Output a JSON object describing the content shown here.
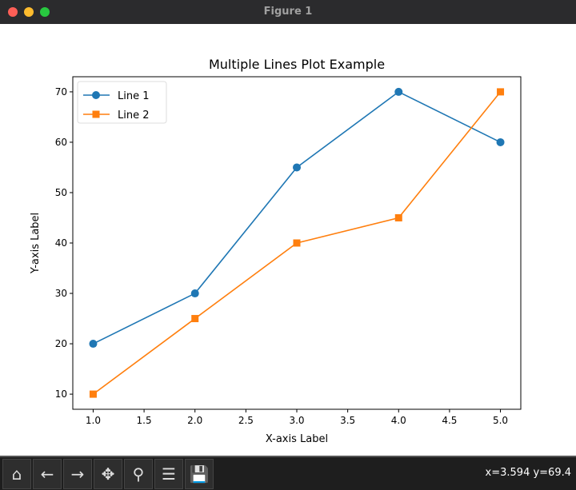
{
  "window": {
    "title": "Figure 1"
  },
  "toolbar": {
    "buttons": [
      {
        "icon": "home-icon",
        "glyph": "⌂"
      },
      {
        "icon": "back-arrow-icon",
        "glyph": "←"
      },
      {
        "icon": "forward-arrow-icon",
        "glyph": "→"
      },
      {
        "icon": "pan-icon",
        "glyph": "✥"
      },
      {
        "icon": "zoom-icon",
        "glyph": "⚲"
      },
      {
        "icon": "configure-subplots-icon",
        "glyph": "☰"
      },
      {
        "icon": "save-icon",
        "glyph": "💾"
      }
    ],
    "coords": "x=3.594 y=69.4"
  },
  "chart_data": {
    "type": "line",
    "title": "Multiple Lines Plot Example",
    "xlabel": "X-axis Label",
    "ylabel": "Y-axis Label",
    "x": [
      1,
      2,
      3,
      4,
      5
    ],
    "series": [
      {
        "name": "Line 1",
        "values": [
          20,
          30,
          55,
          70,
          60
        ],
        "color": "#1f77b4",
        "marker": "circle"
      },
      {
        "name": "Line 2",
        "values": [
          10,
          25,
          40,
          45,
          70
        ],
        "color": "#ff7f0e",
        "marker": "square"
      }
    ],
    "xlim": [
      0.8,
      5.2
    ],
    "ylim": [
      7,
      73
    ],
    "xticks": [
      "1.0",
      "1.5",
      "2.0",
      "2.5",
      "3.0",
      "3.5",
      "4.0",
      "4.5",
      "5.0"
    ],
    "yticks": [
      "10",
      "20",
      "30",
      "40",
      "50",
      "60",
      "70"
    ],
    "legend": "top-left",
    "grid": false
  }
}
